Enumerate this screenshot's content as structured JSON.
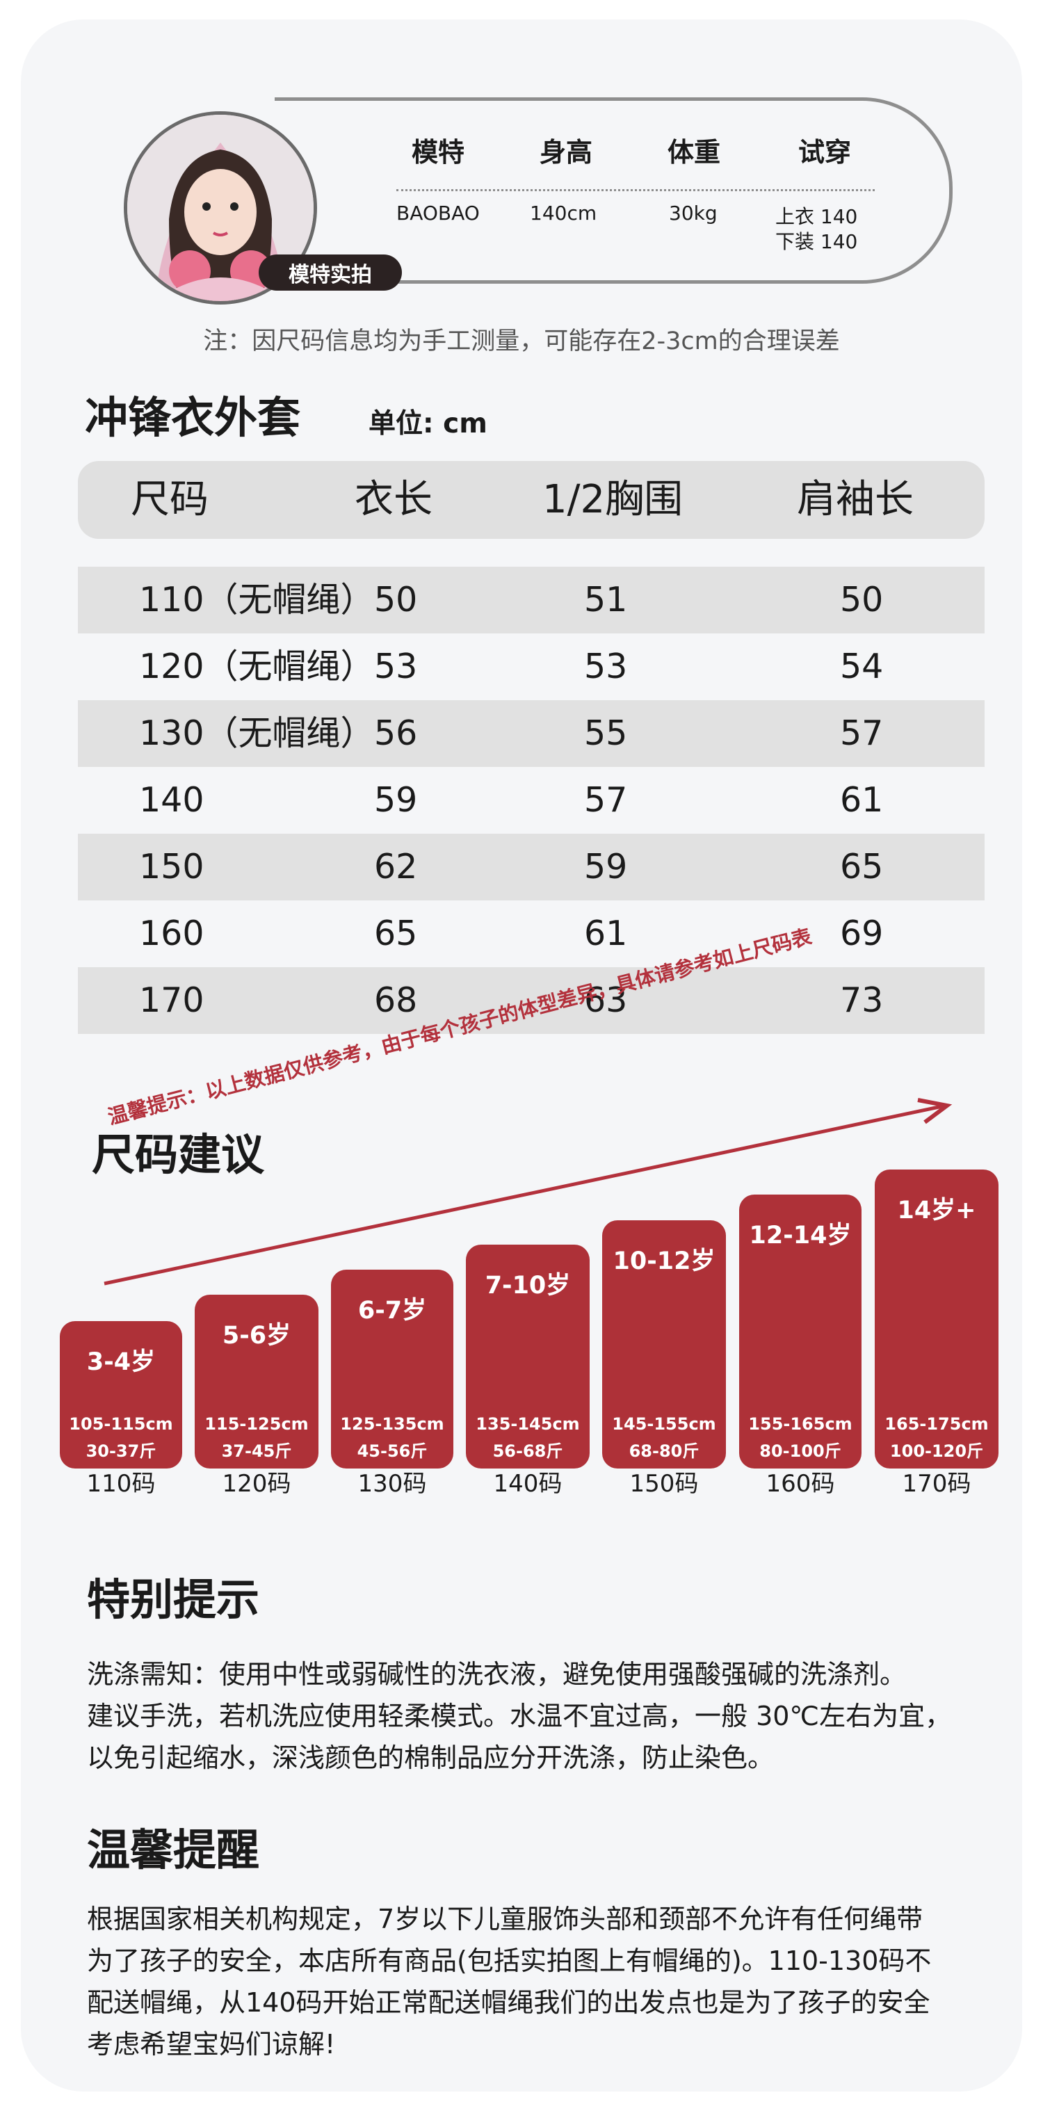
{
  "model": {
    "tag": "模特实拍",
    "headers": [
      "模特",
      "身高",
      "体重",
      "试穿"
    ],
    "name": "BAOBAO",
    "height": "140cm",
    "weight": "30kg",
    "top": "上衣 140",
    "bottom": "下装 140"
  },
  "note": "注：因尺码信息均为手工测量，可能存在2-3cm的合理误差",
  "jacket": {
    "title": "冲锋衣外套",
    "unit": "单位: cm",
    "columns": [
      "尺码",
      "衣长",
      "1/2胸围",
      "肩袖长"
    ],
    "rows": [
      [
        "110（无帽绳）",
        "50",
        "51",
        "50"
      ],
      [
        "120（无帽绳）",
        "53",
        "53",
        "54"
      ],
      [
        "130（无帽绳）",
        "56",
        "55",
        "57"
      ],
      [
        "140",
        "59",
        "57",
        "61"
      ],
      [
        "150",
        "62",
        "59",
        "65"
      ],
      [
        "160",
        "65",
        "61",
        "69"
      ],
      [
        "170",
        "68",
        "63",
        "73"
      ]
    ]
  },
  "suggestion": {
    "title": "尺码建议",
    "tip": "温馨提示：以上数据仅供参考，由于每个孩子的体型差异，具体请参考如上尺码表",
    "bars": [
      {
        "age": "3-4岁",
        "height": "105-115cm",
        "weight": "30-37斤",
        "size": "110码"
      },
      {
        "age": "5-6岁",
        "height": "115-125cm",
        "weight": "37-45斤",
        "size": "120码"
      },
      {
        "age": "6-7岁",
        "height": "125-135cm",
        "weight": "45-56斤",
        "size": "130码"
      },
      {
        "age": "7-10岁",
        "height": "135-145cm",
        "weight": "56-68斤",
        "size": "140码"
      },
      {
        "age": "10-12岁",
        "height": "145-155cm",
        "weight": "68-80斤",
        "size": "150码"
      },
      {
        "age": "12-14岁",
        "height": "155-165cm",
        "weight": "80-100斤",
        "size": "160码"
      },
      {
        "age": "14岁+",
        "height": "165-175cm",
        "weight": "100-120斤",
        "size": "170码"
      }
    ],
    "bar_color": "#ae3138"
  },
  "special": {
    "title": "特别提示",
    "lines": [
      "洗涤需知：使用中性或弱碱性的洗衣液，避免使用强酸强碱的洗涤剂。",
      "建议手洗，若机洗应使用轻柔模式。水温不宜过高，一般 30℃左右为宜，",
      "以免引起缩水，深浅颜色的棉制品应分开洗涤，防止染色。"
    ]
  },
  "reminder": {
    "title": "温馨提醒",
    "lines": [
      "根据国家相关机构规定，7岁以下儿童服饰头部和颈部不允许有任何绳带",
      "为了孩子的安全，本店所有商品(包括实拍图上有帽绳的)。110-130码不",
      "配送帽绳，从140码开始正常配送帽绳我们的出发点也是为了孩子的安全",
      "考虑希望宝妈们谅解!"
    ]
  }
}
